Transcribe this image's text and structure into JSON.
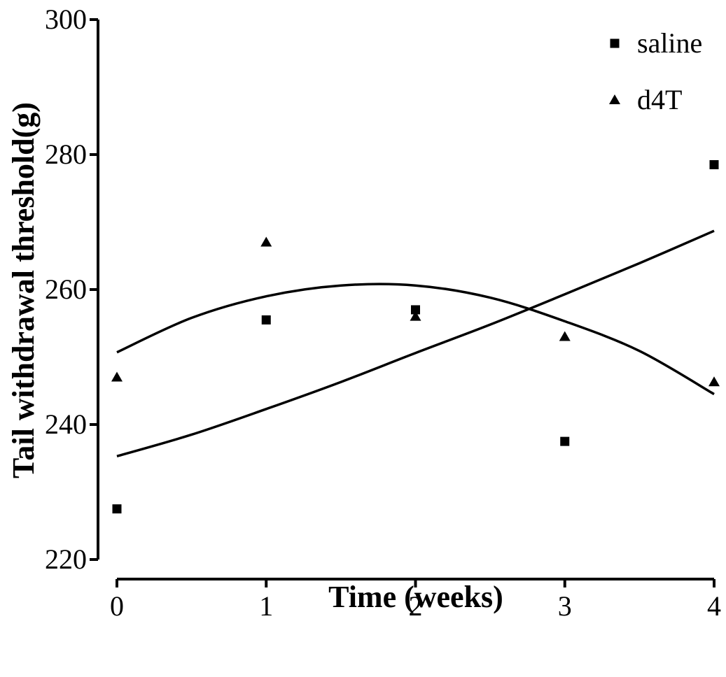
{
  "chart_data": {
    "type": "scatter",
    "title": "",
    "xlabel": "Time (weeks)",
    "ylabel": "Tail withdrawal threshold(g)",
    "xlim": [
      0,
      4
    ],
    "ylim": [
      220,
      300
    ],
    "xticks": [
      0,
      1,
      2,
      3,
      4
    ],
    "yticks": [
      220,
      240,
      260,
      280,
      300
    ],
    "grid": false,
    "legend_position": "top-right",
    "series": [
      {
        "name": "saline",
        "marker": "square",
        "color": "#000000",
        "x": [
          0,
          1,
          2,
          3,
          4
        ],
        "y": [
          227.5,
          255.5,
          257,
          237.5,
          278.5
        ],
        "fit": {
          "type": "quadratic",
          "x": [
            0,
            0.5,
            1,
            1.5,
            2,
            2.5,
            3,
            3.5,
            4
          ],
          "y": [
            235.3,
            238.5,
            242.3,
            246.3,
            250.6,
            254.8,
            259.3,
            263.9,
            268.7
          ]
        }
      },
      {
        "name": "d4T",
        "marker": "triangle",
        "color": "#000000",
        "x": [
          0,
          1,
          2,
          3,
          4
        ],
        "y": [
          247,
          267,
          256,
          253,
          246.3
        ],
        "fit": {
          "type": "quadratic",
          "x": [
            0,
            0.5,
            1,
            1.5,
            2,
            2.5,
            3,
            3.5,
            4
          ],
          "y": [
            250.7,
            255.8,
            259,
            260.6,
            260.6,
            258.8,
            255.3,
            250.9,
            244.5
          ]
        }
      }
    ]
  }
}
